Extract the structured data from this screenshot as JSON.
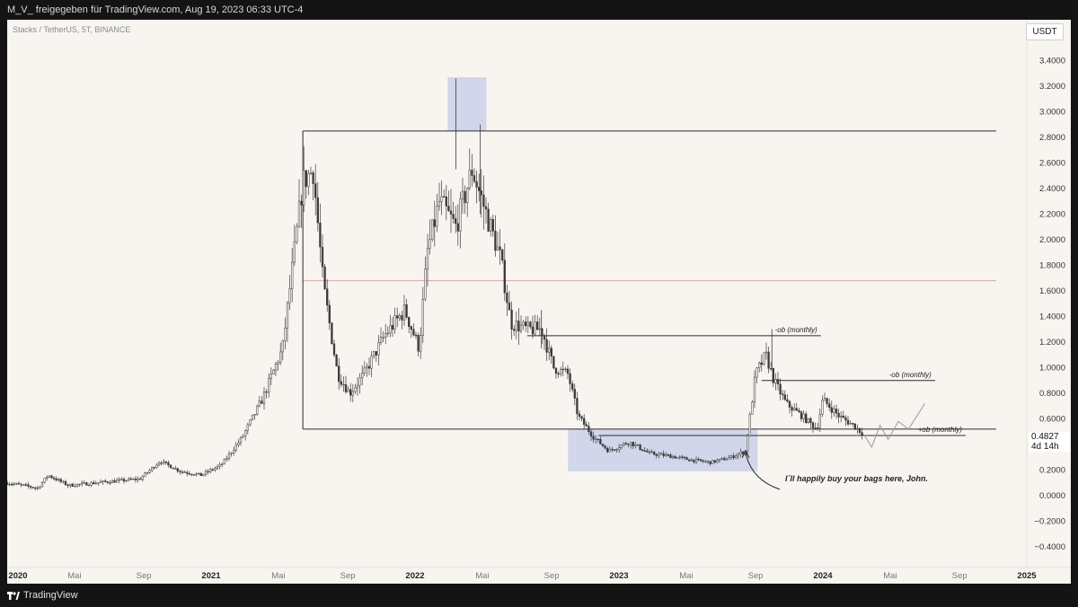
{
  "header": {
    "attribution": "M_V_ freigegeben für TradingView.com, Aug 19, 2023 06:33 UTC-4"
  },
  "symbol": "Stacks / TetherUS, 5T, BINANCE",
  "currency_button": "USDT",
  "price_readout": {
    "price": "0.4827",
    "countdown": "4d 14h"
  },
  "footer": {
    "brand": "TradingView"
  },
  "colors": {
    "background": "#f8f5f1",
    "candle": "#3a3a3a",
    "zone": "#c6cbe8",
    "pink_line": "#e2a0a8"
  },
  "chart_data": {
    "type": "candlestick",
    "title": "",
    "xlabel": "",
    "ylabel": "",
    "ylim": [
      -0.55,
      3.65
    ],
    "x_ticks": [
      "2020",
      "Mai",
      "Sep",
      "2021",
      "Mai",
      "Sep",
      "2022",
      "Mai",
      "Sep",
      "2023",
      "Mai",
      "Sep",
      "2024",
      "Mai",
      "Sep",
      "2025"
    ],
    "y_ticks": [
      -0.4,
      -0.2,
      0.0,
      0.2,
      0.4,
      0.6,
      0.8,
      1.0,
      1.2,
      1.4,
      1.6,
      1.8,
      2.0,
      2.2,
      2.4,
      2.6,
      2.8,
      3.0,
      3.2,
      3.4
    ],
    "price_path": [
      {
        "t": 2020.0,
        "v": 0.1
      },
      {
        "t": 2020.15,
        "v": 0.06
      },
      {
        "t": 2020.2,
        "v": 0.16
      },
      {
        "t": 2020.3,
        "v": 0.08
      },
      {
        "t": 2020.5,
        "v": 0.11
      },
      {
        "t": 2020.65,
        "v": 0.13
      },
      {
        "t": 2020.75,
        "v": 0.27
      },
      {
        "t": 2020.85,
        "v": 0.19
      },
      {
        "t": 2020.95,
        "v": 0.16
      },
      {
        "t": 2021.05,
        "v": 0.24
      },
      {
        "t": 2021.15,
        "v": 0.45
      },
      {
        "t": 2021.25,
        "v": 0.75
      },
      {
        "t": 2021.35,
        "v": 1.15
      },
      {
        "t": 2021.45,
        "v": 2.45
      },
      {
        "t": 2021.5,
        "v": 2.55
      },
      {
        "t": 2021.55,
        "v": 1.65
      },
      {
        "t": 2021.62,
        "v": 0.95
      },
      {
        "t": 2021.68,
        "v": 0.8
      },
      {
        "t": 2021.75,
        "v": 0.95
      },
      {
        "t": 2021.85,
        "v": 1.25
      },
      {
        "t": 2021.95,
        "v": 1.45
      },
      {
        "t": 2022.02,
        "v": 1.15
      },
      {
        "t": 2022.06,
        "v": 1.9
      },
      {
        "t": 2022.12,
        "v": 2.3
      },
      {
        "t": 2022.2,
        "v": 2.1
      },
      {
        "t": 2022.28,
        "v": 2.55
      },
      {
        "t": 2022.35,
        "v": 2.2
      },
      {
        "t": 2022.42,
        "v": 1.85
      },
      {
        "t": 2022.47,
        "v": 1.35
      },
      {
        "t": 2022.55,
        "v": 1.3
      },
      {
        "t": 2022.62,
        "v": 1.3
      },
      {
        "t": 2022.68,
        "v": 1.0
      },
      {
        "t": 2022.75,
        "v": 0.95
      },
      {
        "t": 2022.8,
        "v": 0.62
      },
      {
        "t": 2022.88,
        "v": 0.45
      },
      {
        "t": 2022.95,
        "v": 0.35
      },
      {
        "t": 2023.05,
        "v": 0.42
      },
      {
        "t": 2023.15,
        "v": 0.33
      },
      {
        "t": 2023.25,
        "v": 0.31
      },
      {
        "t": 2023.35,
        "v": 0.28
      },
      {
        "t": 2023.45,
        "v": 0.26
      },
      {
        "t": 2023.55,
        "v": 0.3
      },
      {
        "t": 2023.62,
        "v": 0.35
      },
      {
        "t": 2023.67,
        "v": 0.95
      },
      {
        "t": 2023.72,
        "v": 1.1
      },
      {
        "t": 2023.76,
        "v": 0.9
      },
      {
        "t": 2023.82,
        "v": 0.72
      },
      {
        "t": 2023.9,
        "v": 0.62
      },
      {
        "t": 2023.97,
        "v": 0.52
      },
      {
        "t": 2024.0,
        "v": 0.75
      },
      {
        "t": 2024.08,
        "v": 0.62
      },
      {
        "t": 2024.15,
        "v": 0.55
      },
      {
        "t": 2024.2,
        "v": 0.48
      }
    ],
    "projection_path": [
      {
        "t": 2024.2,
        "v": 0.48
      },
      {
        "t": 2024.24,
        "v": 0.38
      },
      {
        "t": 2024.28,
        "v": 0.55
      },
      {
        "t": 2024.32,
        "v": 0.44
      },
      {
        "t": 2024.37,
        "v": 0.58
      },
      {
        "t": 2024.42,
        "v": 0.52
      },
      {
        "t": 2024.5,
        "v": 0.72
      }
    ],
    "horizontal_levels": [
      {
        "name": "top-line",
        "t0": 2021.45,
        "t1": 2024.85,
        "v": 2.85
      },
      {
        "name": "pink-line",
        "t0": 2021.45,
        "t1": 2024.85,
        "v": 1.68,
        "color": "#e2a0a8"
      },
      {
        "name": "ob-monthly-1",
        "t0": 2022.55,
        "t1": 2023.99,
        "v": 1.25,
        "label": "-ob (monthly)"
      },
      {
        "name": "ob-monthly-2",
        "t0": 2023.7,
        "t1": 2024.55,
        "v": 0.9,
        "label": "-ob (monthly)"
      },
      {
        "name": "bottom-support",
        "t0": 2021.45,
        "t1": 2024.85,
        "v": 0.52
      },
      {
        "name": "ob-monthly-plus",
        "t0": 2022.9,
        "t1": 2024.7,
        "v": 0.47,
        "label": "+ob (monthly)"
      }
    ],
    "zones": [
      {
        "name": "top-zone",
        "t0": 2022.16,
        "t1": 2022.35,
        "v0": 2.85,
        "v1": 3.27
      },
      {
        "name": "accumulation-zone",
        "t0": 2022.75,
        "t1": 2023.68,
        "v0": 0.19,
        "v1": 0.52
      }
    ],
    "annotation": "I´ll happily buy your bags here, John.",
    "grid": false
  }
}
